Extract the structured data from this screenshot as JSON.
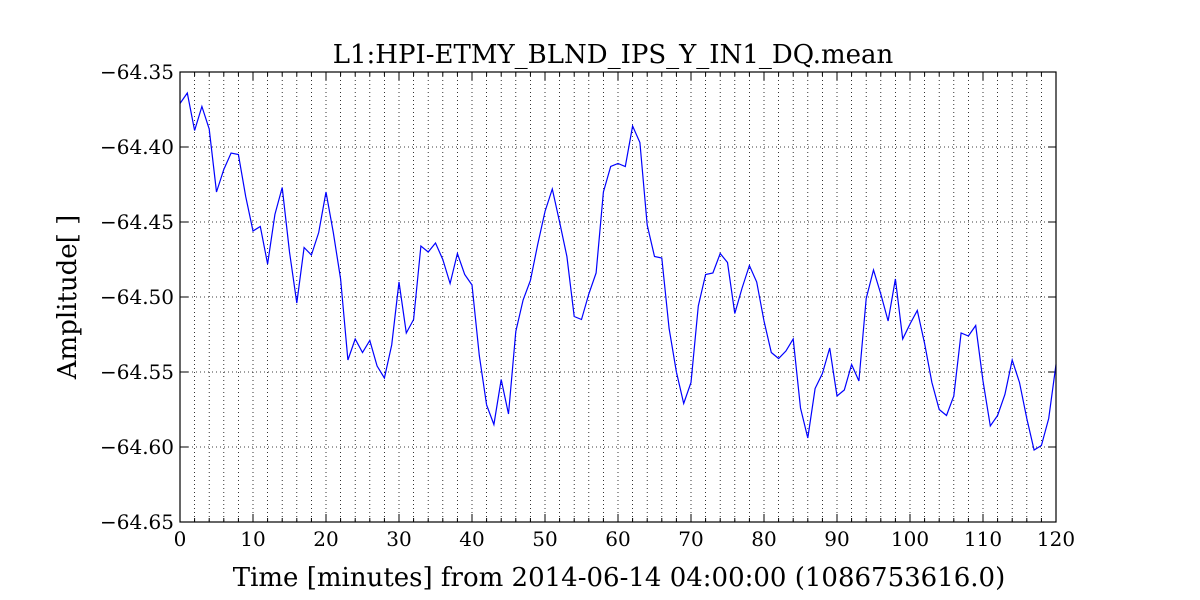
{
  "chart_data": {
    "type": "line",
    "title": "L1:HPI-ETMY_BLND_IPS_Y_IN1_DQ.mean",
    "xlabel": "Time [minutes] from 2014-06-14 04:00:00 (1086753616.0)",
    "ylabel": "Amplitude[ ]",
    "xlim": [
      0,
      120
    ],
    "ylim": [
      -64.65,
      -64.35
    ],
    "x_major_ticks": [
      0,
      10,
      20,
      30,
      40,
      50,
      60,
      70,
      80,
      90,
      100,
      110,
      120
    ],
    "x_tick_labels": [
      "0",
      "10",
      "20",
      "30",
      "40",
      "50",
      "60",
      "70",
      "80",
      "90",
      "100",
      "110",
      "120"
    ],
    "x_minor_tick_step": 2,
    "y_ticks": [
      -64.65,
      -64.6,
      -64.55,
      -64.5,
      -64.45,
      -64.4,
      -64.35
    ],
    "y_tick_labels": [
      "−64.65",
      "−64.60",
      "−64.55",
      "−64.50",
      "−64.45",
      "−64.40",
      "−64.35"
    ],
    "grid": true,
    "line_color": "#0000ff",
    "series": [
      {
        "x": [
          0,
          1,
          2,
          3,
          4,
          5,
          6,
          7,
          8,
          9,
          10,
          11,
          12,
          13,
          14,
          15,
          16,
          17,
          18,
          19,
          20,
          21,
          22,
          23,
          24,
          25,
          26,
          27,
          28,
          29,
          30,
          31,
          32,
          33,
          34,
          35,
          36,
          37,
          38,
          39,
          40,
          41,
          42,
          43,
          44,
          45,
          46,
          47,
          48,
          49,
          50,
          51,
          52,
          53,
          54,
          55,
          56,
          57,
          58,
          59,
          60,
          61,
          62,
          63,
          64,
          65,
          66,
          67,
          68,
          69,
          70,
          71,
          72,
          73,
          74,
          75,
          76,
          77,
          78,
          79,
          80,
          81,
          82,
          83,
          84,
          85,
          86,
          87,
          88,
          89,
          90,
          91,
          92,
          93,
          94,
          95,
          96,
          97,
          98,
          99,
          100,
          101,
          102,
          103,
          104,
          105,
          106,
          107,
          108,
          109,
          110,
          111,
          112,
          113,
          114,
          115,
          116,
          117,
          118,
          119,
          120
        ],
        "y": [
          -64.371,
          -64.364,
          -64.389,
          -64.373,
          -64.388,
          -64.43,
          -64.415,
          -64.404,
          -64.405,
          -64.433,
          -64.456,
          -64.453,
          -64.478,
          -64.445,
          -64.427,
          -64.47,
          -64.504,
          -64.467,
          -64.472,
          -64.457,
          -64.43,
          -64.457,
          -64.488,
          -64.542,
          -64.528,
          -64.537,
          -64.529,
          -64.546,
          -64.554,
          -64.532,
          -64.49,
          -64.524,
          -64.515,
          -64.466,
          -64.47,
          -64.464,
          -64.475,
          -64.491,
          -64.471,
          -64.485,
          -64.492,
          -64.539,
          -64.572,
          -64.585,
          -64.555,
          -64.578,
          -64.523,
          -64.502,
          -64.489,
          -64.465,
          -64.443,
          -64.428,
          -64.45,
          -64.473,
          -64.513,
          -64.515,
          -64.498,
          -64.484,
          -64.43,
          -64.413,
          -64.411,
          -64.413,
          -64.386,
          -64.397,
          -64.452,
          -64.473,
          -64.474,
          -64.521,
          -64.55,
          -64.571,
          -64.557,
          -64.506,
          -64.485,
          -64.484,
          -64.471,
          -64.477,
          -64.511,
          -64.494,
          -64.479,
          -64.49,
          -64.516,
          -64.537,
          -64.541,
          -64.536,
          -64.528,
          -64.574,
          -64.594,
          -64.561,
          -64.551,
          -64.534,
          -64.566,
          -64.562,
          -64.545,
          -64.556,
          -64.501,
          -64.482,
          -64.498,
          -64.516,
          -64.488,
          -64.528,
          -64.518,
          -64.509,
          -64.531,
          -64.557,
          -64.575,
          -64.579,
          -64.566,
          -64.524,
          -64.526,
          -64.519,
          -64.556,
          -64.586,
          -64.579,
          -64.565,
          -64.542,
          -64.557,
          -64.581,
          -64.602,
          -64.599,
          -64.581,
          -64.545
        ]
      }
    ]
  }
}
